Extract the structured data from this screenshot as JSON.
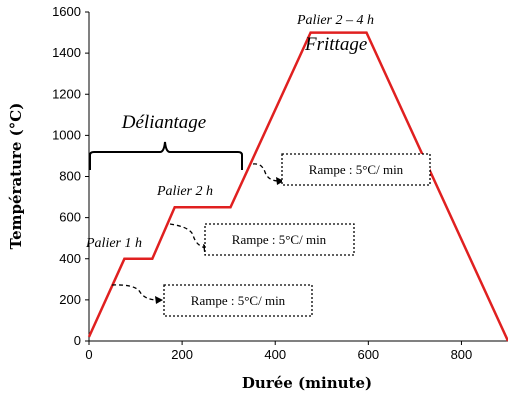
{
  "chart_data": {
    "type": "line",
    "xlabel": "Durée (minute)",
    "ylabel": "Température (°C)",
    "xlim": [
      0,
      900
    ],
    "ylim": [
      0,
      1600
    ],
    "x_ticks": [
      "0",
      "200",
      "400",
      "600",
      "800"
    ],
    "y_ticks": [
      "0",
      "200",
      "400",
      "600",
      "800",
      "1000",
      "1200",
      "1400",
      "1600"
    ],
    "line_color": "#e02020",
    "series": [
      {
        "x": [
          0,
          76,
          136,
          184,
          304,
          476,
          596,
          900
        ],
        "y": [
          20,
          400,
          400,
          650,
          650,
          1500,
          1500,
          0
        ]
      }
    ],
    "annotations": {
      "palier1": "Palier 1 h",
      "palier2": "Palier 2 h",
      "palier3": "Palier 2 – 4 h",
      "frittage": "Frittage",
      "deliantage": "Déliantage",
      "rampe1": "Rampe : 5°C/ min",
      "rampe2": "Rampe : 5°C/ min",
      "rampe3": "Rampe : 5°C/ min"
    }
  }
}
